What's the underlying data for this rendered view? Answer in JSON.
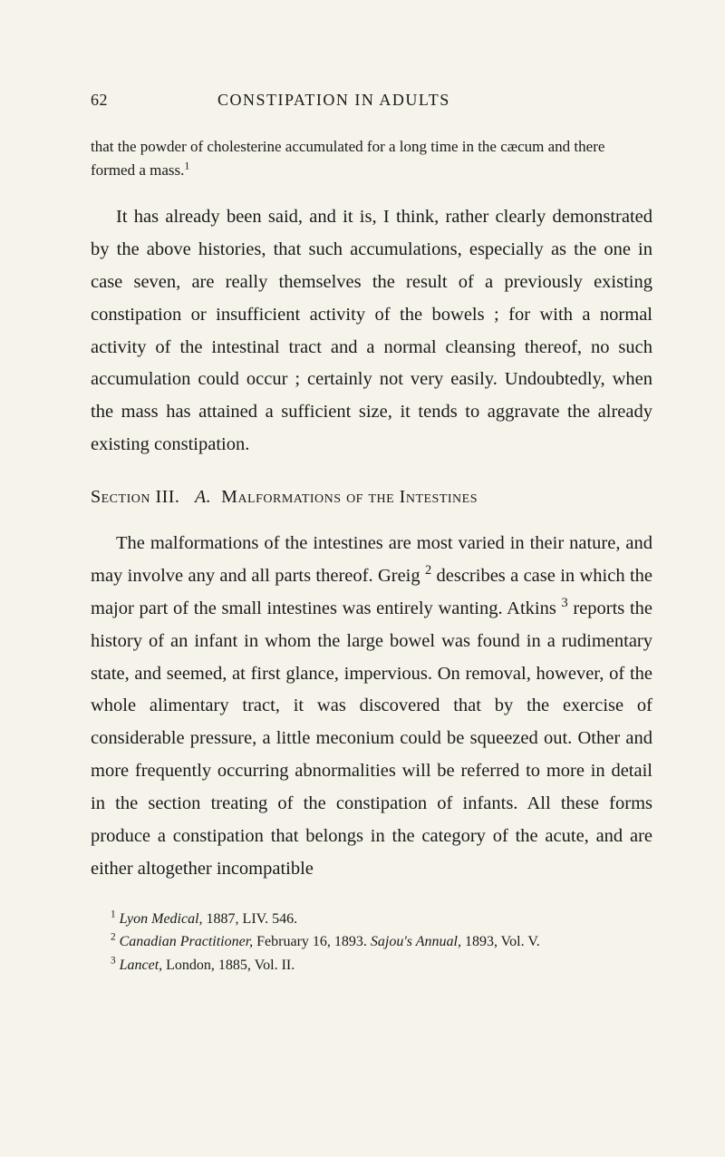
{
  "header": {
    "page_number": "62",
    "running_head": "CONSTIPATION IN ADULTS"
  },
  "excerpt": {
    "text_a": "that the powder of cholesterine accumulated for a long time in the cæcum and there formed a mass.",
    "sup_1": "1"
  },
  "para1": {
    "text": "It has already been said, and it is, I think, rather clearly demonstrated by the above histories, that such accumulations, especially as the one in case seven, are really themselves the result of a previously existing constipation or insufficient activity of the bowels ; for with a normal activity of the intestinal tract and a normal cleansing thereof, no such accumulation could occur ; certainly not very easily. Undoubtedly, when the mass has attained a sufficient size, it tends to aggravate the already existing constipation."
  },
  "section": {
    "label_a": "Section III.",
    "label_b": "A.",
    "title": "Malformations of the Intestines"
  },
  "para2": {
    "t1": "The malformations of the intestines are most varied in their nature, and may involve any and all parts thereof. Greig ",
    "s2": "2",
    "t2": " describes a case in which the major part of the small intestines was entirely wanting. Atkins ",
    "s3": "3",
    "t3": " reports the history of an infant in whom the large bowel was found in a rudimentary state, and seemed, at first glance, impervious. On removal, however, of the whole alimentary tract, it was discovered that by the exercise of considerable pressure, a little meconium could be squeezed out. Other and more frequently occurring abnormalities will be referred to more in detail in the section treating of the constipation of infants. All these forms produce a constipation that belongs in the category of the acute, and are either altogether incompatible"
  },
  "footnotes": {
    "f1_sup": "1",
    "f1_italic": "Lyon Medical,",
    "f1_rest": " 1887, LIV. 546.",
    "f2_sup": "2",
    "f2_italic": "Canadian Practitioner,",
    "f2_mid": " February 16, 1893. ",
    "f2_italic2": "Sajou's Annual,",
    "f2_rest": " 1893, Vol. V.",
    "f3_sup": "3",
    "f3_italic": "Lancet,",
    "f3_rest": " London, 1885, Vol. II."
  }
}
